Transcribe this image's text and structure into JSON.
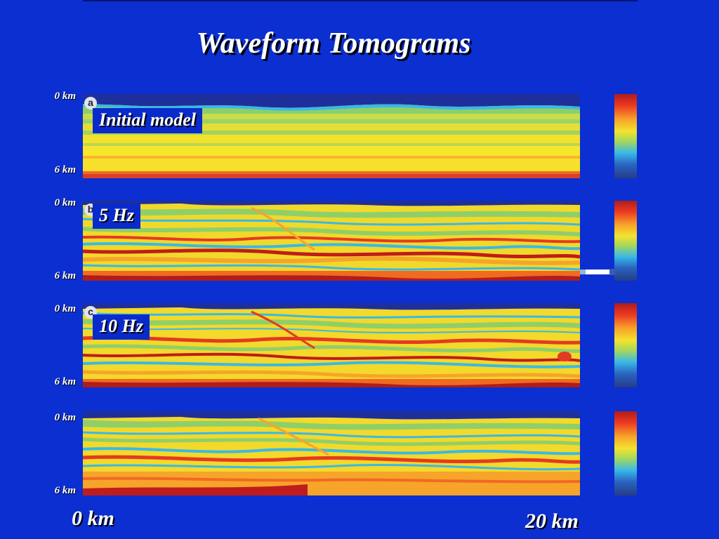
{
  "title": "Waveform Tomograms",
  "panels": [
    {
      "letter": "a",
      "label": "Initial model",
      "depth_top": "0 km",
      "depth_bottom": "6 km"
    },
    {
      "letter": "b",
      "label": "5 Hz",
      "depth_top": "0 km",
      "depth_bottom": "6 km"
    },
    {
      "letter": "c",
      "label": "10 Hz",
      "depth_top": "0 km",
      "depth_bottom": "6 km"
    },
    {
      "letter": "",
      "label": "",
      "depth_top": "0 km",
      "depth_bottom": "6 km"
    }
  ],
  "x_axis": {
    "start": "0 km",
    "end": "20 km"
  },
  "colors": {
    "background": "#0b2fd0",
    "colormap": [
      "#b01c1c",
      "#ee3a22",
      "#f7a42a",
      "#f4e22e",
      "#a6d85a",
      "#39b9e6",
      "#2a63c0",
      "#253c86"
    ]
  }
}
